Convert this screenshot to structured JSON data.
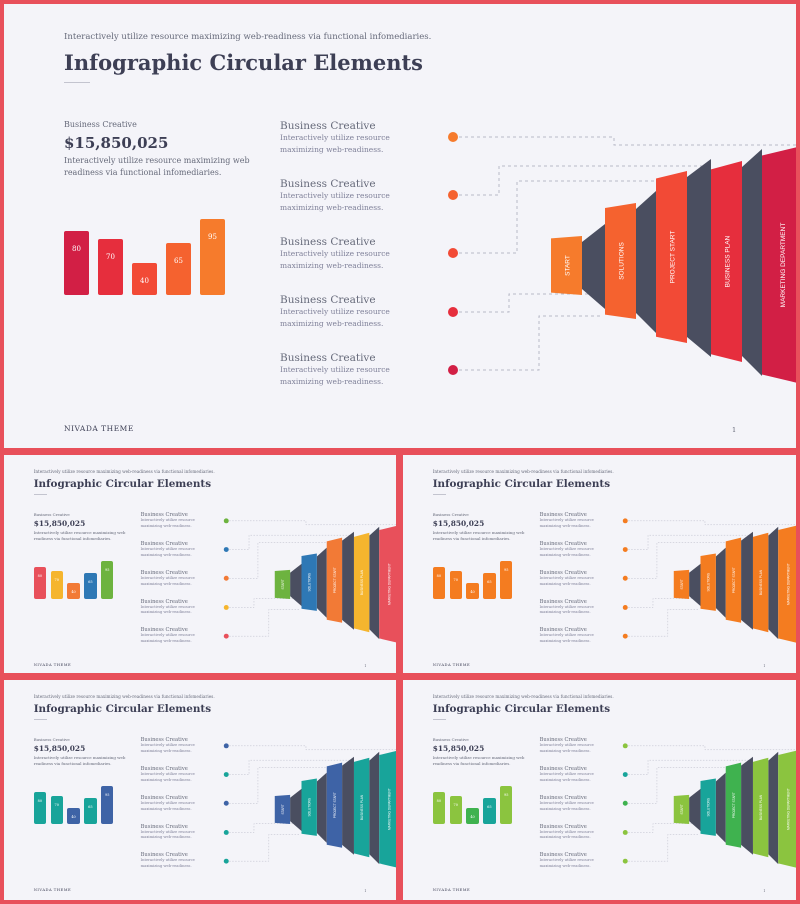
{
  "top_text": "Interactively utilize resource maximizing web-readiness via functional infomediaries.",
  "title": "Infographic Circular Elements",
  "stat": {
    "label": "Business Creative",
    "amount": "$15,850,025",
    "desc": "Interactively utilize resource maximizing web readiness via functional infomediaries."
  },
  "bars": [
    80,
    70,
    40,
    65,
    95
  ],
  "items": [
    {
      "title": "Business Creative",
      "text": "Interactively utilize resource maximizing web-readiness."
    },
    {
      "title": "Business Creative",
      "text": "Interactively utilize resource maximizing web-readiness."
    },
    {
      "title": "Business Creative",
      "text": "Interactively utilize resource maximizing web-readiness."
    },
    {
      "title": "Business Creative",
      "text": "Interactively utilize resource maximizing web-readiness."
    },
    {
      "title": "Business Creative",
      "text": "Interactively utilize resource maximizing web-readiness."
    }
  ],
  "steps": [
    "START",
    "SOLUTIONS",
    "PROJECT START",
    "BUSINESS PLAN",
    "MARKETING DEPARTMENT"
  ],
  "footer": "NIVADA THEME",
  "page_number": "1",
  "palettes": {
    "main": [
      "#d21f45",
      "#e62e3d",
      "#f24a36",
      "#f5622f",
      "#f67b2c"
    ],
    "multi": [
      "#e8505b",
      "#f5b52e",
      "#f27a36",
      "#2e78b5",
      "#6db33f"
    ],
    "orange": [
      "#f47c20",
      "#f47c20",
      "#f47c20",
      "#f47c20",
      "#f47c20"
    ],
    "teal": [
      "#18a49a",
      "#18a49a",
      "#3e63a6",
      "#18a49a",
      "#3e63a6"
    ],
    "green": [
      "#8bc43f",
      "#8bc43f",
      "#3fb24f",
      "#18a49a",
      "#8bc43f"
    ]
  },
  "shadow_color": "#4a4e60",
  "background_color": "#e8505b"
}
